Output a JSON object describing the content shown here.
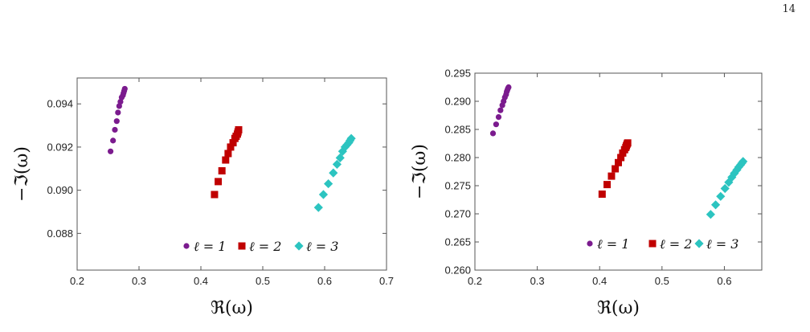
{
  "page": {
    "number": "14"
  },
  "chart_data": [
    {
      "type": "scatter",
      "xlabel": "ℜ(ω)",
      "ylabel": "−ℑ(ω)",
      "xlim": [
        0.2,
        0.7
      ],
      "ylim": [
        0.0863,
        0.0952
      ],
      "xticks": [
        "0.2",
        "0.3",
        "0.4",
        "0.5",
        "0.6",
        "0.7"
      ],
      "yticks": [
        "0.088",
        "0.090",
        "0.092",
        "0.094"
      ],
      "legend_placement": "bottom-right",
      "series": [
        {
          "name": "ℓ = 1",
          "color": "#7b1b8e",
          "marker": "circle",
          "x": [
            0.254,
            0.258,
            0.261,
            0.264,
            0.266,
            0.268,
            0.27,
            0.272,
            0.274,
            0.275,
            0.276,
            0.277
          ],
          "y": [
            0.0918,
            0.0923,
            0.0928,
            0.0932,
            0.0936,
            0.0939,
            0.0941,
            0.0943,
            0.0944,
            0.0945,
            0.0946,
            0.0947
          ]
        },
        {
          "name": "ℓ = 2",
          "color": "#c00000",
          "marker": "square",
          "x": [
            0.422,
            0.428,
            0.434,
            0.44,
            0.444,
            0.448,
            0.452,
            0.455,
            0.457,
            0.459,
            0.46,
            0.461
          ],
          "y": [
            0.0898,
            0.0904,
            0.0909,
            0.0914,
            0.0917,
            0.092,
            0.0922,
            0.0924,
            0.0925,
            0.0926,
            0.0927,
            0.0928
          ]
        },
        {
          "name": "ℓ = 3",
          "color": "#2cc4c0",
          "marker": "diamond",
          "x": [
            0.59,
            0.598,
            0.606,
            0.614,
            0.62,
            0.625,
            0.629,
            0.633,
            0.636,
            0.639,
            0.641,
            0.643
          ],
          "y": [
            0.0892,
            0.0898,
            0.0903,
            0.0908,
            0.0912,
            0.0915,
            0.0918,
            0.092,
            0.0921,
            0.0922,
            0.0923,
            0.0924
          ]
        }
      ]
    },
    {
      "type": "scatter",
      "xlabel": "ℜ(ω)",
      "ylabel": "−ℑ(ω)",
      "xlim": [
        0.2,
        0.66
      ],
      "ylim": [
        0.26,
        0.295
      ],
      "xticks": [
        "0.2",
        "0.3",
        "0.4",
        "0.5",
        "0.6"
      ],
      "yticks": [
        "0.260",
        "0.265",
        "0.270",
        "0.275",
        "0.280",
        "0.285",
        "0.290",
        "0.295"
      ],
      "legend_placement": "bottom-right",
      "series": [
        {
          "name": "ℓ = 1",
          "color": "#7b1b8e",
          "marker": "circle",
          "x": [
            0.229,
            0.234,
            0.238,
            0.241,
            0.244,
            0.246,
            0.248,
            0.25,
            0.251,
            0.252,
            0.253,
            0.254
          ],
          "y": [
            0.2843,
            0.2859,
            0.2872,
            0.2884,
            0.2893,
            0.29,
            0.2907,
            0.2912,
            0.2917,
            0.292,
            0.2923,
            0.2925
          ]
        },
        {
          "name": "ℓ = 2",
          "color": "#c00000",
          "marker": "square",
          "x": [
            0.404,
            0.412,
            0.419,
            0.425,
            0.43,
            0.434,
            0.437,
            0.44,
            0.442,
            0.443,
            0.444,
            0.445
          ],
          "y": [
            0.2735,
            0.2752,
            0.2767,
            0.278,
            0.2791,
            0.28,
            0.2808,
            0.2814,
            0.2818,
            0.2821,
            0.2824,
            0.2826
          ]
        },
        {
          "name": "ℓ = 3",
          "color": "#2cc4c0",
          "marker": "diamond",
          "x": [
            0.578,
            0.586,
            0.594,
            0.601,
            0.607,
            0.612,
            0.616,
            0.62,
            0.623,
            0.626,
            0.628,
            0.63
          ],
          "y": [
            0.2699,
            0.2716,
            0.2731,
            0.2745,
            0.2756,
            0.2765,
            0.2772,
            0.2778,
            0.2783,
            0.2787,
            0.279,
            0.2793
          ]
        }
      ]
    }
  ]
}
